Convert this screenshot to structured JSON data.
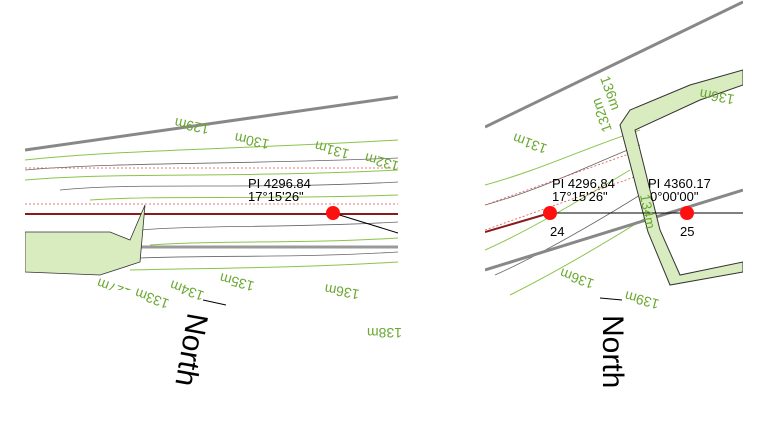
{
  "left_view": {
    "contour_labels": [
      "129m",
      "130m",
      "131m",
      "132m",
      "133m",
      "134m",
      "135m",
      "136m",
      "138m",
      "127m"
    ],
    "pi_label": "PI 4296.84",
    "pi_angle": "17°15'26\"",
    "north": "North"
  },
  "right_view": {
    "contour_labels": [
      "131m",
      "132m",
      "136m",
      "136m",
      "139m",
      "136m",
      "134m"
    ],
    "pi_1_label": "PI 4296.84",
    "pi_1_angle": "17°15'26\"",
    "pi_1_number": "24",
    "pi_2_label": "PI 4360.17",
    "pi_2_angle": "0°00'00\"",
    "pi_2_number": "25",
    "north": "North"
  }
}
